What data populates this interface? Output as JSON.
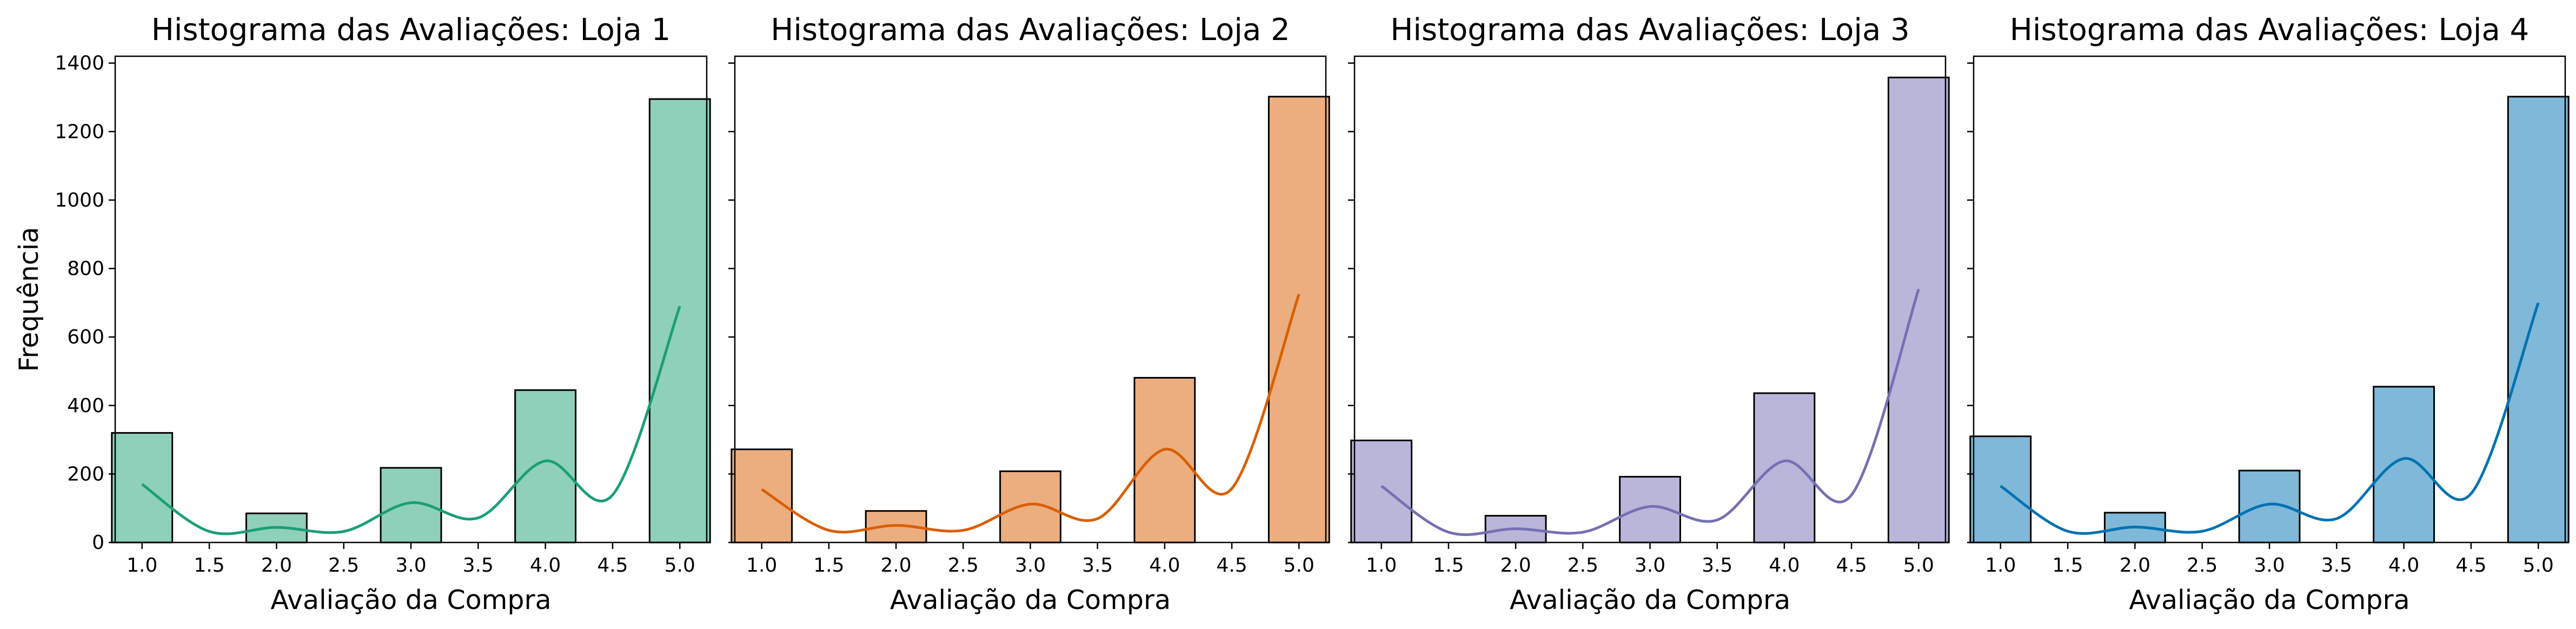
{
  "chart_data": [
    {
      "type": "bar",
      "title": "Histograma das Avaliações: Loja 1",
      "xlabel": "Avaliação da Compra",
      "ylabel": "Frequência",
      "xlim": [
        0.8,
        5.2
      ],
      "ylim": [
        0,
        1420
      ],
      "xticks": [
        "1.0",
        "1.5",
        "2.0",
        "2.5",
        "3.0",
        "3.5",
        "4.0",
        "4.5",
        "5.0"
      ],
      "yticks": [
        "0",
        "200",
        "400",
        "600",
        "800",
        "1000",
        "1200",
        "1400"
      ],
      "categories": [
        "1",
        "2",
        "3",
        "4",
        "5"
      ],
      "values": [
        320,
        85,
        218,
        445,
        1295
      ],
      "kde": [
        170,
        44,
        116,
        238,
        690
      ],
      "color": "#1b9e77",
      "fill": "#8ed0b9"
    },
    {
      "type": "bar",
      "title": "Histograma das Avaliações: Loja 2",
      "xlabel": "Avaliação da Compra",
      "ylabel": "",
      "xlim": [
        0.8,
        5.2
      ],
      "ylim": [
        0,
        1420
      ],
      "xticks": [
        "1.0",
        "1.5",
        "2.0",
        "2.5",
        "3.0",
        "3.5",
        "4.0",
        "4.5",
        "5.0"
      ],
      "yticks": [],
      "categories": [
        "1",
        "2",
        "3",
        "4",
        "5"
      ],
      "values": [
        272,
        92,
        208,
        481,
        1302
      ],
      "kde": [
        155,
        50,
        112,
        272,
        725
      ],
      "color": "#d95f02",
      "fill": "#ecae7f"
    },
    {
      "type": "bar",
      "title": "Histograma das Avaliações: Loja 3",
      "xlabel": "Avaliação da Compra",
      "ylabel": "",
      "xlim": [
        0.8,
        5.2
      ],
      "ylim": [
        0,
        1420
      ],
      "xticks": [
        "1.0",
        "1.5",
        "2.0",
        "2.5",
        "3.0",
        "3.5",
        "4.0",
        "4.5",
        "5.0"
      ],
      "yticks": [],
      "categories": [
        "1",
        "2",
        "3",
        "4",
        "5"
      ],
      "values": [
        298,
        78,
        192,
        436,
        1358
      ],
      "kde": [
        165,
        40,
        105,
        238,
        740
      ],
      "color": "#7570b3",
      "fill": "#b9b6da"
    },
    {
      "type": "bar",
      "title": "Histograma das Avaliações: Loja 4",
      "xlabel": "Avaliação da Compra",
      "ylabel": "",
      "xlim": [
        0.8,
        5.2
      ],
      "ylim": [
        0,
        1420
      ],
      "xticks": [
        "1.0",
        "1.5",
        "2.0",
        "2.5",
        "3.0",
        "3.5",
        "4.0",
        "4.5",
        "5.0"
      ],
      "yticks": [],
      "categories": [
        "1",
        "2",
        "3",
        "4",
        "5"
      ],
      "values": [
        310,
        87,
        210,
        455,
        1302
      ],
      "kde": [
        165,
        45,
        112,
        245,
        700
      ],
      "color": "#0072b2",
      "fill": "#7fb8d8"
    }
  ]
}
